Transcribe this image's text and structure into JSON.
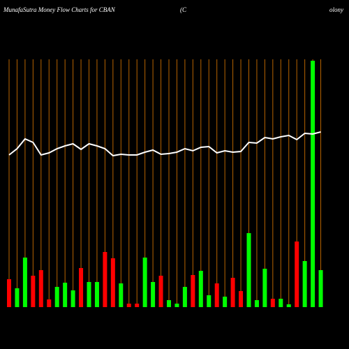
{
  "chart_data": {
    "type": "bar",
    "title_parts": [
      "MunafaSutra  Money Flow  Charts for CBAN",
      "(C",
      "olony"
    ],
    "values": [
      40,
      27,
      71,
      45,
      53,
      11,
      29,
      35,
      24,
      56,
      36,
      36,
      79,
      70,
      34,
      5,
      5,
      71,
      36,
      45,
      10,
      5,
      29,
      46,
      52,
      17,
      34,
      15,
      42,
      23,
      106,
      10,
      55,
      12,
      12,
      4,
      94,
      66,
      353,
      53
    ],
    "colors": [
      "#ff0000",
      "#00ff00",
      "#00ff00",
      "#ff0000",
      "#ff0000",
      "#ff0000",
      "#00ff00",
      "#00ff00",
      "#00ff00",
      "#ff0000",
      "#00ff00",
      "#00ff00",
      "#ff0000",
      "#ff0000",
      "#00ff00",
      "#ff0000",
      "#ff0000",
      "#00ff00",
      "#00ff00",
      "#ff0000",
      "#00ff00",
      "#00ff00",
      "#00ff00",
      "#ff0000",
      "#00ff00",
      "#00ff00",
      "#ff0000",
      "#00ff00",
      "#ff0000",
      "#ff0000",
      "#00ff00",
      "#00ff00",
      "#00ff00",
      "#ff0000",
      "#00ff00",
      "#00ff00",
      "#ff0000",
      "#00ff00",
      "#00ff00",
      "#00ff00"
    ],
    "line_values": [
      218,
      227,
      241,
      236,
      218,
      221,
      227,
      231,
      234,
      226,
      234,
      231,
      227,
      217,
      219,
      218,
      218,
      222,
      225,
      219,
      220,
      222,
      227,
      224,
      229,
      230,
      221,
      224,
      222,
      223,
      236,
      235,
      243,
      241,
      244,
      246,
      240,
      249,
      248,
      251
    ],
    "line_color": "#ffffff",
    "grid_color": "#b86400"
  }
}
